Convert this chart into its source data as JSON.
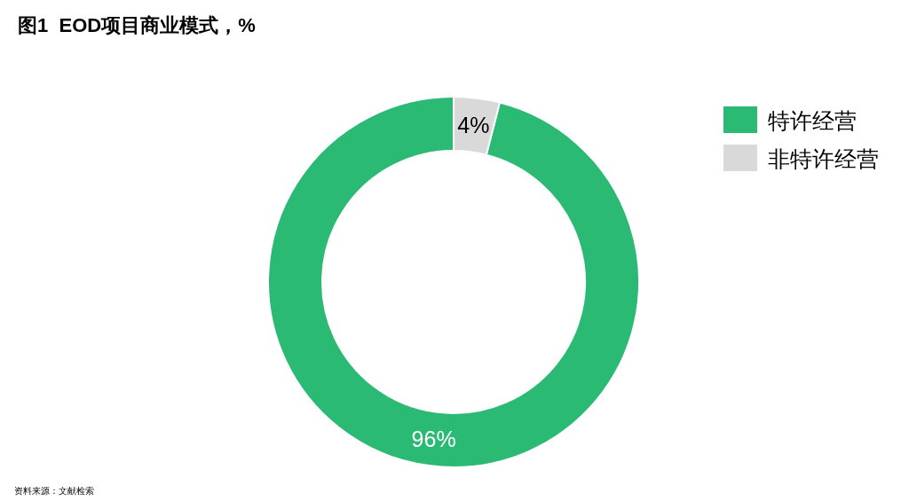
{
  "chart_data": {
    "type": "donut",
    "title": "图1  EOD项目商业模式，%",
    "categories": [
      "特许经营",
      "非特许经营"
    ],
    "values": [
      96,
      4
    ],
    "value_labels": [
      "96%",
      "4%"
    ],
    "colors": [
      "#2bba74",
      "#d9d9d9"
    ],
    "legend": "top right",
    "annotations": [
      "资料来源：文献检索"
    ]
  }
}
